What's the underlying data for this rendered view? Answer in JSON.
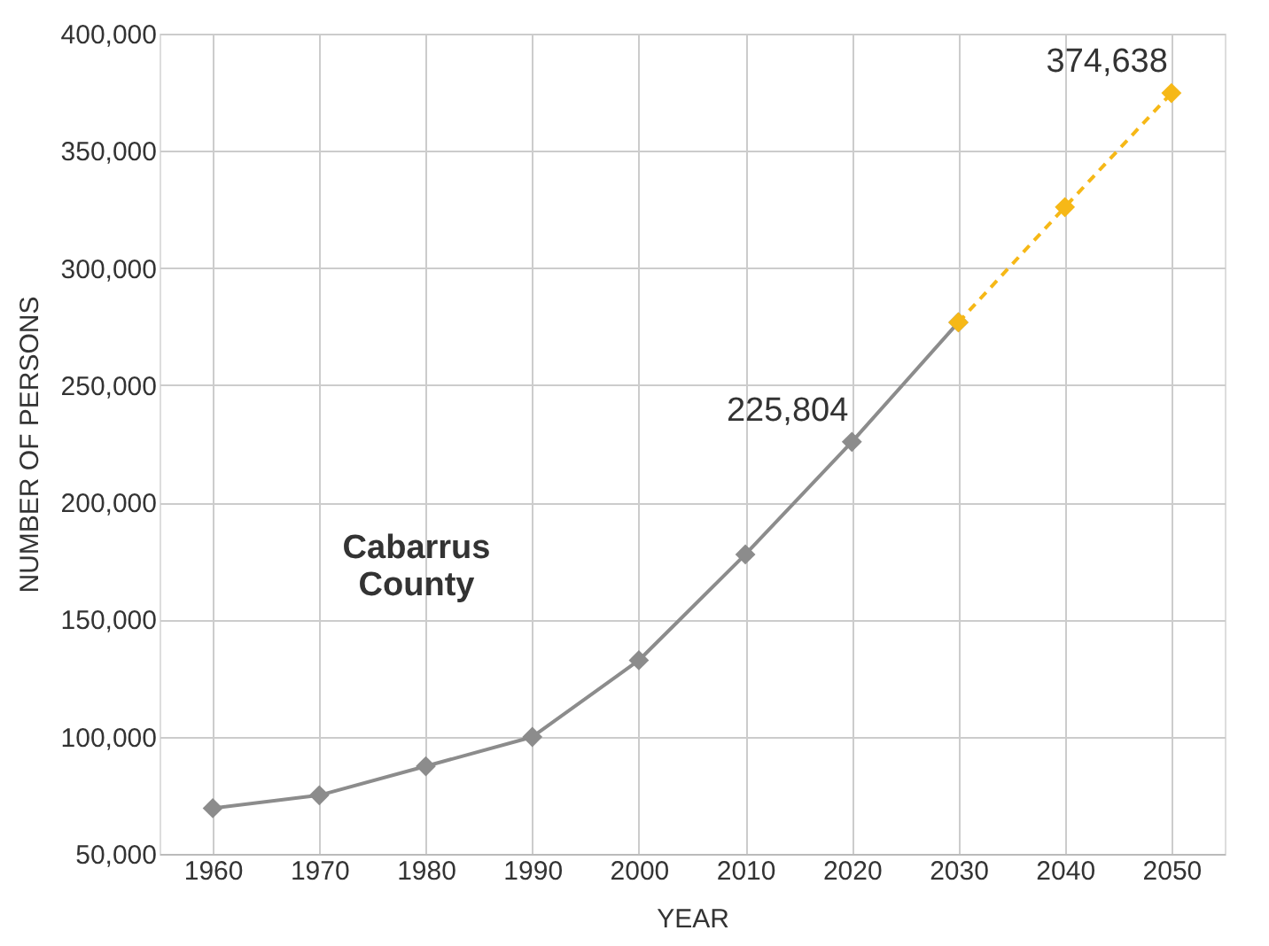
{
  "chart_data": {
    "type": "line",
    "xlabel": "YEAR",
    "ylabel": "NUMBER OF PERSONS",
    "categories": [
      "1960",
      "1970",
      "1980",
      "1990",
      "2000",
      "2010",
      "2020",
      "2030",
      "2040",
      "2050"
    ],
    "series": [
      {
        "color": "#8c8c8c",
        "line_style": "solid",
        "values": [
          69500,
          75000,
          87400,
          99900,
          132600,
          177800,
          225804,
          276800,
          null,
          null
        ]
      },
      {
        "color": "#f6b817",
        "line_style": "dashed",
        "values": [
          null,
          null,
          null,
          null,
          null,
          null,
          null,
          276800,
          326000,
          374638
        ]
      }
    ],
    "ylim": [
      50000,
      400000
    ],
    "yticks": [
      {
        "value": 50000,
        "label": "50,000"
      },
      {
        "value": 100000,
        "label": "100,000"
      },
      {
        "value": 150000,
        "label": "150,000"
      },
      {
        "value": 200000,
        "label": "200,000"
      },
      {
        "value": 250000,
        "label": "250,000"
      },
      {
        "value": 300000,
        "label": "300,000"
      },
      {
        "value": 350000,
        "label": "350,000"
      },
      {
        "value": 400000,
        "label": "400,000"
      }
    ],
    "grid": true,
    "marker": "diamond",
    "annotations": [
      {
        "text": "225,804",
        "x": "2020",
        "y": 225804
      },
      {
        "text": "374,638",
        "x": "2050",
        "y": 374638
      },
      "Cabarrus County"
    ]
  }
}
